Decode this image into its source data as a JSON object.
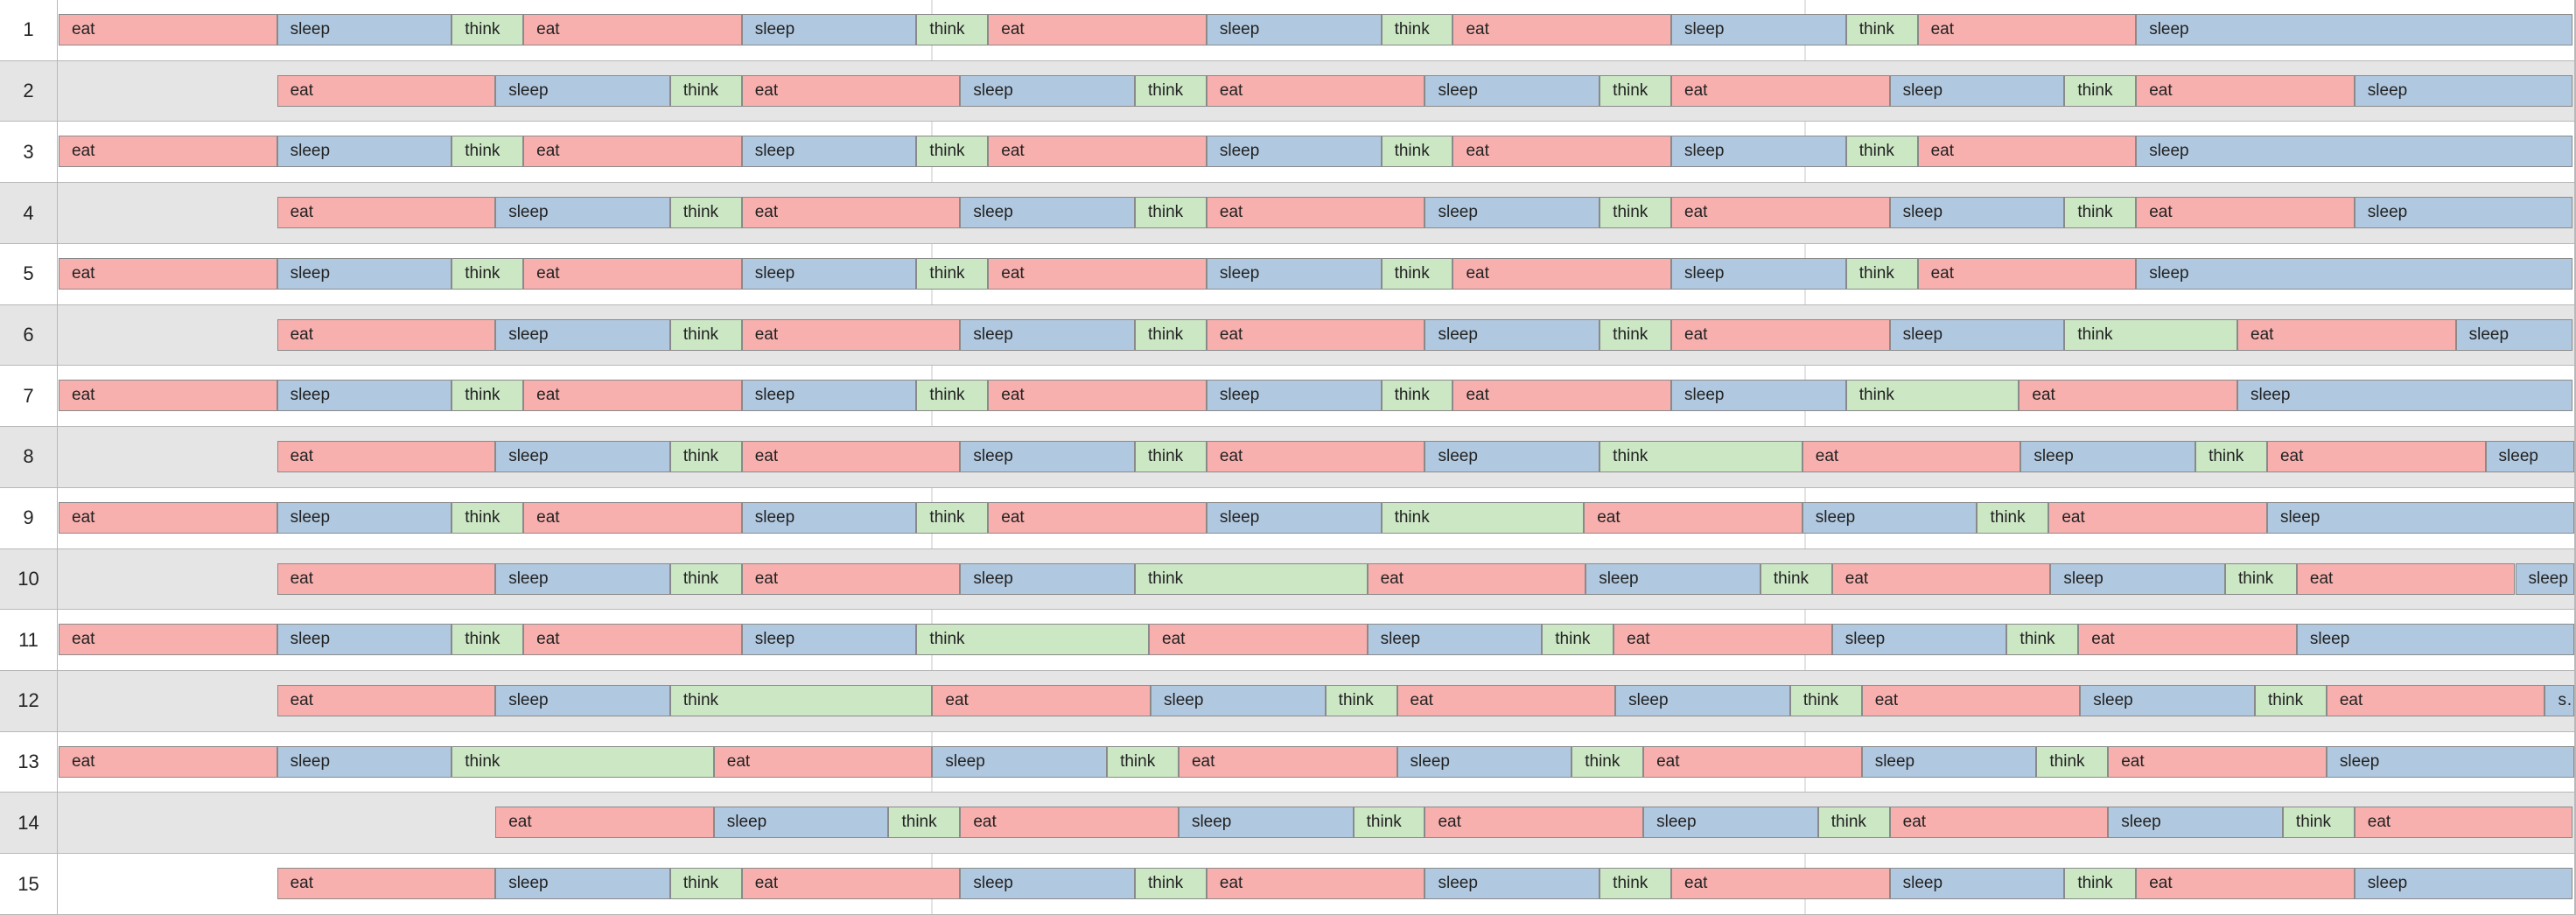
{
  "timeline": {
    "rows": [
      {
        "label": "1",
        "start": 0,
        "activities": [
          [
            "eat",
            250
          ],
          [
            "sleep",
            200
          ],
          [
            "think",
            82
          ],
          [
            "eat",
            250
          ],
          [
            "sleep",
            200
          ],
          [
            "think",
            82
          ],
          [
            "eat",
            250
          ],
          [
            "sleep",
            200
          ],
          [
            "think",
            82
          ],
          [
            "eat",
            250
          ],
          [
            "sleep",
            200
          ],
          [
            "think",
            82
          ],
          [
            "eat",
            250
          ],
          [
            "sleep",
            500
          ]
        ]
      },
      {
        "label": "2",
        "start": 250,
        "activities": [
          [
            "eat",
            250
          ],
          [
            "sleep",
            200
          ],
          [
            "think",
            82
          ],
          [
            "eat",
            250
          ],
          [
            "sleep",
            200
          ],
          [
            "think",
            82
          ],
          [
            "eat",
            250
          ],
          [
            "sleep",
            200
          ],
          [
            "think",
            82
          ],
          [
            "eat",
            250
          ],
          [
            "sleep",
            200
          ],
          [
            "think",
            82
          ],
          [
            "eat",
            250
          ],
          [
            "sleep",
            250
          ]
        ]
      },
      {
        "label": "3",
        "start": 0,
        "activities": [
          [
            "eat",
            250
          ],
          [
            "sleep",
            200
          ],
          [
            "think",
            82
          ],
          [
            "eat",
            250
          ],
          [
            "sleep",
            200
          ],
          [
            "think",
            82
          ],
          [
            "eat",
            250
          ],
          [
            "sleep",
            200
          ],
          [
            "think",
            82
          ],
          [
            "eat",
            250
          ],
          [
            "sleep",
            200
          ],
          [
            "think",
            82
          ],
          [
            "eat",
            250
          ],
          [
            "sleep",
            500
          ]
        ]
      },
      {
        "label": "4",
        "start": 250,
        "activities": [
          [
            "eat",
            250
          ],
          [
            "sleep",
            200
          ],
          [
            "think",
            82
          ],
          [
            "eat",
            250
          ],
          [
            "sleep",
            200
          ],
          [
            "think",
            82
          ],
          [
            "eat",
            250
          ],
          [
            "sleep",
            200
          ],
          [
            "think",
            82
          ],
          [
            "eat",
            250
          ],
          [
            "sleep",
            200
          ],
          [
            "think",
            82
          ],
          [
            "eat",
            250
          ],
          [
            "sleep",
            250
          ]
        ]
      },
      {
        "label": "5",
        "start": 0,
        "activities": [
          [
            "eat",
            250
          ],
          [
            "sleep",
            200
          ],
          [
            "think",
            82
          ],
          [
            "eat",
            250
          ],
          [
            "sleep",
            200
          ],
          [
            "think",
            82
          ],
          [
            "eat",
            250
          ],
          [
            "sleep",
            200
          ],
          [
            "think",
            82
          ],
          [
            "eat",
            250
          ],
          [
            "sleep",
            200
          ],
          [
            "think",
            82
          ],
          [
            "eat",
            250
          ],
          [
            "sleep",
            500
          ]
        ]
      },
      {
        "label": "6",
        "start": 250,
        "activities": [
          [
            "eat",
            250
          ],
          [
            "sleep",
            200
          ],
          [
            "think",
            82
          ],
          [
            "eat",
            250
          ],
          [
            "sleep",
            200
          ],
          [
            "think",
            82
          ],
          [
            "eat",
            250
          ],
          [
            "sleep",
            200
          ],
          [
            "think",
            82
          ],
          [
            "eat",
            250
          ],
          [
            "sleep",
            200
          ],
          [
            "think",
            198
          ],
          [
            "eat",
            250
          ],
          [
            "sleep",
            134
          ]
        ]
      },
      {
        "label": "7",
        "start": 0,
        "activities": [
          [
            "eat",
            250
          ],
          [
            "sleep",
            200
          ],
          [
            "think",
            82
          ],
          [
            "eat",
            250
          ],
          [
            "sleep",
            200
          ],
          [
            "think",
            82
          ],
          [
            "eat",
            250
          ],
          [
            "sleep",
            200
          ],
          [
            "think",
            82
          ],
          [
            "eat",
            250
          ],
          [
            "sleep",
            200
          ],
          [
            "think",
            198
          ],
          [
            "eat",
            250
          ],
          [
            "sleep",
            384
          ]
        ]
      },
      {
        "label": "8",
        "start": 250,
        "activities": [
          [
            "eat",
            250
          ],
          [
            "sleep",
            200
          ],
          [
            "think",
            82
          ],
          [
            "eat",
            250
          ],
          [
            "sleep",
            200
          ],
          [
            "think",
            82
          ],
          [
            "eat",
            250
          ],
          [
            "sleep",
            200
          ],
          [
            "think",
            232
          ],
          [
            "eat",
            250
          ],
          [
            "sleep",
            200
          ],
          [
            "think",
            82
          ],
          [
            "eat",
            250
          ],
          [
            "sleep",
            102
          ]
        ]
      },
      {
        "label": "9",
        "start": 0,
        "activities": [
          [
            "eat",
            250
          ],
          [
            "sleep",
            200
          ],
          [
            "think",
            82
          ],
          [
            "eat",
            250
          ],
          [
            "sleep",
            200
          ],
          [
            "think",
            82
          ],
          [
            "eat",
            250
          ],
          [
            "sleep",
            200
          ],
          [
            "think",
            232
          ],
          [
            "eat",
            250
          ],
          [
            "sleep",
            200
          ],
          [
            "think",
            82
          ],
          [
            "eat",
            250
          ],
          [
            "sleep",
            352
          ]
        ]
      },
      {
        "label": "10",
        "start": 250,
        "activities": [
          [
            "eat",
            250
          ],
          [
            "sleep",
            200
          ],
          [
            "think",
            82
          ],
          [
            "eat",
            250
          ],
          [
            "sleep",
            200
          ],
          [
            "think",
            266
          ],
          [
            "eat",
            250
          ],
          [
            "sleep",
            200
          ],
          [
            "think",
            82
          ],
          [
            "eat",
            250
          ],
          [
            "sleep",
            200
          ],
          [
            "think",
            82
          ],
          [
            "eat",
            250
          ],
          [
            "sleep",
            68
          ]
        ]
      },
      {
        "label": "11",
        "start": 0,
        "activities": [
          [
            "eat",
            250
          ],
          [
            "sleep",
            200
          ],
          [
            "think",
            82
          ],
          [
            "eat",
            250
          ],
          [
            "sleep",
            200
          ],
          [
            "think",
            266
          ],
          [
            "eat",
            250
          ],
          [
            "sleep",
            200
          ],
          [
            "think",
            82
          ],
          [
            "eat",
            250
          ],
          [
            "sleep",
            200
          ],
          [
            "think",
            82
          ],
          [
            "eat",
            250
          ],
          [
            "sleep",
            318
          ]
        ]
      },
      {
        "label": "12",
        "start": 250,
        "activities": [
          [
            "eat",
            250
          ],
          [
            "sleep",
            200
          ],
          [
            "think",
            300
          ],
          [
            "eat",
            250
          ],
          [
            "sleep",
            200
          ],
          [
            "think",
            82
          ],
          [
            "eat",
            250
          ],
          [
            "sleep",
            200
          ],
          [
            "think",
            82
          ],
          [
            "eat",
            250
          ],
          [
            "sleep",
            200
          ],
          [
            "think",
            82
          ],
          [
            "eat",
            250
          ],
          [
            "sleep",
            34
          ]
        ]
      },
      {
        "label": "13",
        "start": 0,
        "activities": [
          [
            "eat",
            250
          ],
          [
            "sleep",
            200
          ],
          [
            "think",
            300
          ],
          [
            "eat",
            250
          ],
          [
            "sleep",
            200
          ],
          [
            "think",
            82
          ],
          [
            "eat",
            250
          ],
          [
            "sleep",
            200
          ],
          [
            "think",
            82
          ],
          [
            "eat",
            250
          ],
          [
            "sleep",
            200
          ],
          [
            "think",
            82
          ],
          [
            "eat",
            250
          ],
          [
            "sleep",
            284
          ]
        ]
      },
      {
        "label": "14",
        "start": 500,
        "activities": [
          [
            "eat",
            250
          ],
          [
            "sleep",
            200
          ],
          [
            "think",
            82
          ],
          [
            "eat",
            250
          ],
          [
            "sleep",
            200
          ],
          [
            "think",
            82
          ],
          [
            "eat",
            250
          ],
          [
            "sleep",
            200
          ],
          [
            "think",
            82
          ],
          [
            "eat",
            250
          ],
          [
            "sleep",
            200
          ],
          [
            "think",
            82
          ],
          [
            "eat",
            250
          ]
        ]
      },
      {
        "label": "15",
        "start": 250,
        "activities": [
          [
            "eat",
            250
          ],
          [
            "sleep",
            200
          ],
          [
            "think",
            82
          ],
          [
            "eat",
            250
          ],
          [
            "sleep",
            200
          ],
          [
            "think",
            82
          ],
          [
            "eat",
            250
          ],
          [
            "sleep",
            200
          ],
          [
            "think",
            82
          ],
          [
            "eat",
            250
          ],
          [
            "sleep",
            200
          ],
          [
            "think",
            82
          ],
          [
            "eat",
            250
          ],
          [
            "sleep",
            250
          ]
        ]
      }
    ]
  },
  "colors": {
    "eat": "#f8b0ae",
    "sleep": "#b1c9e0",
    "think": "#cbe7c4",
    "alt_row": "#e5e5e5",
    "border": "#8a8a8a"
  }
}
